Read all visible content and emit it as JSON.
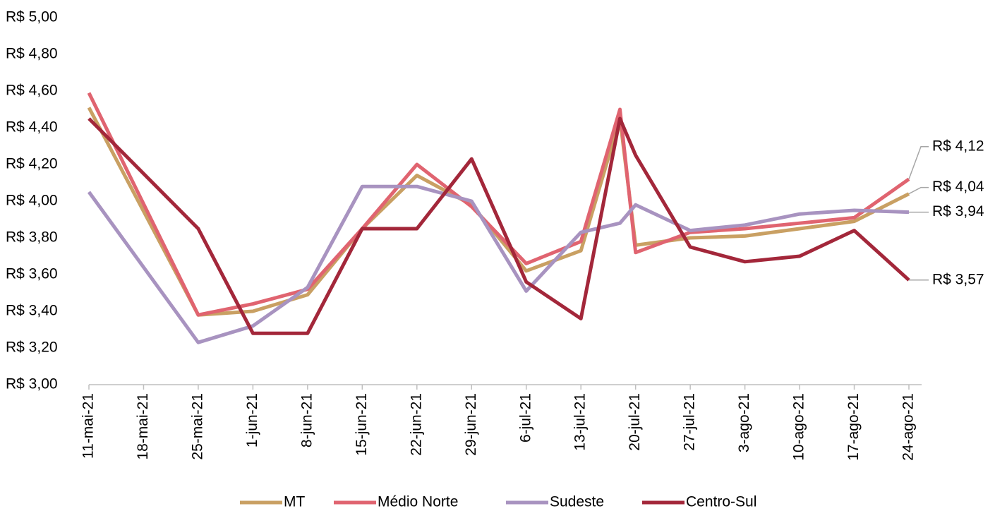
{
  "chart_data": {
    "type": "line",
    "x": [
      "2021-05-11",
      "2021-05-25",
      "2021-06-01",
      "2021-06-08",
      "2021-06-15",
      "2021-06-22",
      "2021-06-29",
      "2021-07-06",
      "2021-07-13",
      "2021-07-18",
      "2021-07-20",
      "2021-07-27",
      "2021-08-03",
      "2021-08-10",
      "2021-08-17",
      "2021-08-24"
    ],
    "series": [
      {
        "name": "MT",
        "color": "#c9a063",
        "values": [
          4.51,
          3.38,
          3.4,
          3.49,
          3.85,
          4.14,
          3.98,
          3.62,
          3.73,
          4.45,
          3.76,
          3.8,
          3.81,
          3.85,
          3.89,
          4.04
        ],
        "value_labels": [
          null,
          null,
          null,
          null,
          null,
          null,
          null,
          null,
          null,
          null,
          null,
          null,
          null,
          null,
          null,
          "R$ 4,04"
        ]
      },
      {
        "name": "Médio Norte",
        "color": "#e06470",
        "values": [
          4.59,
          3.38,
          3.44,
          3.52,
          3.85,
          4.2,
          3.97,
          3.66,
          3.78,
          4.5,
          3.72,
          3.83,
          3.85,
          3.88,
          3.91,
          4.12
        ],
        "value_labels": [
          null,
          null,
          null,
          null,
          null,
          null,
          null,
          null,
          null,
          null,
          null,
          null,
          null,
          null,
          null,
          "R$ 4,12"
        ]
      },
      {
        "name": "Sudeste",
        "color": "#a893c0",
        "values": [
          4.05,
          3.23,
          3.32,
          3.53,
          4.08,
          4.08,
          4.0,
          3.51,
          3.83,
          3.88,
          3.98,
          3.84,
          3.87,
          3.93,
          3.95,
          3.94
        ],
        "value_labels": [
          null,
          null,
          null,
          null,
          null,
          null,
          null,
          null,
          null,
          null,
          null,
          null,
          null,
          null,
          null,
          "R$ 3,94"
        ]
      },
      {
        "name": "Centro-Sul",
        "color": "#a3273a",
        "values": [
          4.45,
          3.85,
          3.28,
          3.28,
          3.85,
          3.85,
          4.23,
          3.56,
          3.36,
          4.45,
          4.25,
          3.75,
          3.67,
          3.7,
          3.84,
          3.57
        ],
        "value_labels": [
          null,
          null,
          null,
          null,
          null,
          null,
          null,
          null,
          null,
          null,
          null,
          null,
          null,
          null,
          null,
          "R$ 3,57"
        ]
      }
    ],
    "xlim": [
      "2021-05-11",
      "2021-08-24"
    ],
    "xticks": [
      {
        "value": "2021-05-11",
        "label": "11-mai-21"
      },
      {
        "value": "2021-05-18",
        "label": "18-mai-21"
      },
      {
        "value": "2021-05-25",
        "label": "25-mai-21"
      },
      {
        "value": "2021-06-01",
        "label": "1-jun-21"
      },
      {
        "value": "2021-06-08",
        "label": "8-jun-21"
      },
      {
        "value": "2021-06-15",
        "label": "15-jun-21"
      },
      {
        "value": "2021-06-22",
        "label": "22-jun-21"
      },
      {
        "value": "2021-06-29",
        "label": "29-jun-21"
      },
      {
        "value": "2021-07-06",
        "label": "6-jul-21"
      },
      {
        "value": "2021-07-13",
        "label": "13-jul-21"
      },
      {
        "value": "2021-07-20",
        "label": "20-jul-21"
      },
      {
        "value": "2021-07-27",
        "label": "27-jul-21"
      },
      {
        "value": "2021-08-03",
        "label": "3-ago-21"
      },
      {
        "value": "2021-08-10",
        "label": "10-ago-21"
      },
      {
        "value": "2021-08-17",
        "label": "17-ago-21"
      },
      {
        "value": "2021-08-24",
        "label": "24-ago-21"
      }
    ],
    "ylim": [
      3.0,
      5.0
    ],
    "yticks": [
      {
        "value": 3.0,
        "label": "R$ 3,00"
      },
      {
        "value": 3.2,
        "label": "R$ 3,20"
      },
      {
        "value": 3.4,
        "label": "R$ 3,40"
      },
      {
        "value": 3.6,
        "label": "R$ 3,60"
      },
      {
        "value": 3.8,
        "label": "R$ 3,80"
      },
      {
        "value": 4.0,
        "label": "R$ 4,00"
      },
      {
        "value": 4.2,
        "label": "R$ 4,20"
      },
      {
        "value": 4.4,
        "label": "R$ 4,40"
      },
      {
        "value": 4.6,
        "label": "R$ 4,60"
      },
      {
        "value": 4.8,
        "label": "R$ 4,80"
      },
      {
        "value": 5.0,
        "label": "R$ 5,00"
      }
    ],
    "grid": false,
    "legend": "bottom"
  }
}
